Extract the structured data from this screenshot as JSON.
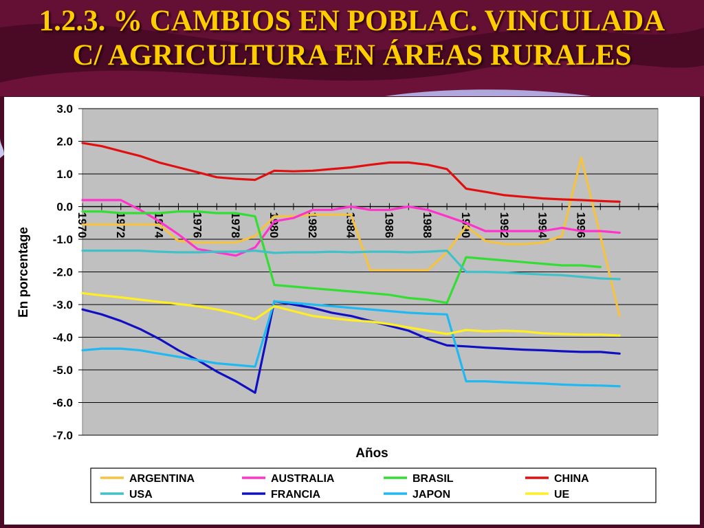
{
  "slide": {
    "title_line1": "1.2.3.  % CAMBIOS EN POBLAC. VINCULADA",
    "title_line2": "C/ AGRICULTURA EN ÁREAS RURALES"
  },
  "colors": {
    "background": "#4a0a26",
    "title": "#ffcc00",
    "plot_area": "#c0c0c0"
  },
  "chart_data": {
    "type": "line",
    "title": "",
    "xlabel": "Años",
    "ylabel": "En porcentage",
    "ylim": [
      -7.0,
      3.0
    ],
    "yticks": [
      "3.0",
      "2.0",
      "1.0",
      "0.0",
      "-1.0",
      "-2.0",
      "-3.0",
      "-4.0",
      "-5.0",
      "-6.0",
      "-7.0"
    ],
    "xlim": [
      1970,
      2000
    ],
    "xticks": [
      "1970",
      "1972",
      "1974",
      "1976",
      "1978",
      "1980",
      "1982",
      "1984",
      "1986",
      "1988",
      "1990",
      "1992",
      "1994",
      "1996"
    ],
    "grid": true,
    "legend_position": "bottom",
    "series": [
      {
        "name": "ARGENTINA",
        "color": "#f5c242",
        "x": [
          1970,
          1971,
          1972,
          1973,
          1974,
          1975,
          1976,
          1977,
          1978,
          1979,
          1980,
          1981,
          1982,
          1983,
          1984,
          1985,
          1986,
          1987,
          1988,
          1989,
          1990,
          1991,
          1992,
          1993,
          1994,
          1995,
          1996,
          1997,
          1998
        ],
        "y": [
          -0.55,
          -0.55,
          -0.55,
          -0.55,
          -0.55,
          -1.05,
          -1.1,
          -1.1,
          -1.1,
          -0.9,
          -0.3,
          -0.3,
          -0.25,
          -0.25,
          -0.25,
          -1.95,
          -1.95,
          -1.95,
          -1.95,
          -1.4,
          -0.6,
          -1.05,
          -1.15,
          -1.15,
          -1.1,
          -0.9,
          1.5,
          -0.9,
          -3.35
        ]
      },
      {
        "name": "AUSTRALIA",
        "color": "#ff33cc",
        "x": [
          1970,
          1971,
          1972,
          1973,
          1974,
          1975,
          1976,
          1977,
          1978,
          1979,
          1980,
          1981,
          1982,
          1983,
          1984,
          1985,
          1986,
          1987,
          1988,
          1989,
          1990,
          1991,
          1992,
          1993,
          1994,
          1995,
          1996,
          1997,
          1998
        ],
        "y": [
          0.2,
          0.2,
          0.2,
          -0.1,
          -0.45,
          -0.85,
          -1.3,
          -1.4,
          -1.5,
          -1.25,
          -0.45,
          -0.35,
          -0.1,
          -0.1,
          0.0,
          -0.1,
          -0.1,
          0.0,
          -0.1,
          -0.3,
          -0.5,
          -0.75,
          -0.75,
          -0.75,
          -0.75,
          -0.65,
          -0.75,
          -0.75,
          -0.8
        ]
      },
      {
        "name": "BRASIL",
        "color": "#33dd33",
        "x": [
          1970,
          1971,
          1972,
          1973,
          1974,
          1975,
          1976,
          1977,
          1978,
          1979,
          1980,
          1981,
          1982,
          1983,
          1984,
          1985,
          1986,
          1987,
          1988,
          1989,
          1990,
          1991,
          1992,
          1993,
          1994,
          1995,
          1996,
          1997
        ],
        "y": [
          -0.15,
          -0.15,
          -0.2,
          -0.2,
          -0.2,
          -0.15,
          -0.15,
          -0.2,
          -0.2,
          -0.3,
          -2.4,
          -2.45,
          -2.5,
          -2.55,
          -2.6,
          -2.65,
          -2.7,
          -2.8,
          -2.85,
          -2.95,
          -1.55,
          -1.6,
          -1.65,
          -1.7,
          -1.75,
          -1.8,
          -1.8,
          -1.85
        ]
      },
      {
        "name": "CHINA",
        "color": "#e01010",
        "x": [
          1970,
          1971,
          1972,
          1973,
          1974,
          1975,
          1976,
          1977,
          1978,
          1979,
          1980,
          1981,
          1982,
          1983,
          1984,
          1985,
          1986,
          1987,
          1988,
          1989,
          1990,
          1991,
          1992,
          1993,
          1994,
          1995,
          1996,
          1997,
          1998
        ],
        "y": [
          1.95,
          1.85,
          1.7,
          1.55,
          1.35,
          1.2,
          1.05,
          0.9,
          0.85,
          0.82,
          1.1,
          1.08,
          1.1,
          1.15,
          1.2,
          1.28,
          1.35,
          1.35,
          1.28,
          1.15,
          0.55,
          0.45,
          0.35,
          0.3,
          0.25,
          0.22,
          0.2,
          0.17,
          0.15
        ]
      },
      {
        "name": "USA",
        "color": "#40c0c8",
        "x": [
          1970,
          1971,
          1972,
          1973,
          1974,
          1975,
          1976,
          1977,
          1978,
          1979,
          1980,
          1981,
          1982,
          1983,
          1984,
          1985,
          1986,
          1987,
          1988,
          1989,
          1990,
          1991,
          1992,
          1993,
          1994,
          1995,
          1996,
          1997,
          1998
        ],
        "y": [
          -1.35,
          -1.35,
          -1.35,
          -1.35,
          -1.38,
          -1.4,
          -1.4,
          -1.38,
          -1.38,
          -1.35,
          -1.42,
          -1.4,
          -1.4,
          -1.38,
          -1.4,
          -1.38,
          -1.38,
          -1.4,
          -1.38,
          -1.35,
          -2.0,
          -2.0,
          -2.02,
          -2.05,
          -2.08,
          -2.1,
          -2.15,
          -2.2,
          -2.22
        ]
      },
      {
        "name": "FRANCIA",
        "color": "#1010c0",
        "x": [
          1970,
          1971,
          1972,
          1973,
          1974,
          1975,
          1976,
          1977,
          1978,
          1979,
          1980,
          1981,
          1982,
          1983,
          1984,
          1985,
          1986,
          1987,
          1988,
          1989,
          1990,
          1991,
          1992,
          1993,
          1994,
          1995,
          1996,
          1997,
          1998
        ],
        "y": [
          -3.15,
          -3.3,
          -3.5,
          -3.75,
          -4.05,
          -4.4,
          -4.7,
          -5.05,
          -5.35,
          -5.7,
          -2.9,
          -3.0,
          -3.1,
          -3.25,
          -3.35,
          -3.5,
          -3.65,
          -3.8,
          -4.05,
          -4.25,
          -4.28,
          -4.32,
          -4.35,
          -4.38,
          -4.4,
          -4.43,
          -4.45,
          -4.45,
          -4.5
        ]
      },
      {
        "name": "JAPON",
        "color": "#20b8f0",
        "x": [
          1970,
          1971,
          1972,
          1973,
          1974,
          1975,
          1976,
          1977,
          1978,
          1979,
          1980,
          1981,
          1982,
          1983,
          1984,
          1985,
          1986,
          1987,
          1988,
          1989,
          1990,
          1991,
          1992,
          1993,
          1994,
          1995,
          1996,
          1997,
          1998
        ],
        "y": [
          -4.4,
          -4.35,
          -4.35,
          -4.4,
          -4.5,
          -4.6,
          -4.7,
          -4.8,
          -4.85,
          -4.9,
          -2.9,
          -2.95,
          -3.0,
          -3.05,
          -3.1,
          -3.15,
          -3.2,
          -3.25,
          -3.28,
          -3.3,
          -5.35,
          -5.35,
          -5.38,
          -5.4,
          -5.42,
          -5.45,
          -5.47,
          -5.48,
          -5.5
        ]
      },
      {
        "name": "UE",
        "color": "#ffee22",
        "x": [
          1970,
          1971,
          1972,
          1973,
          1974,
          1975,
          1976,
          1977,
          1978,
          1979,
          1980,
          1981,
          1982,
          1983,
          1984,
          1985,
          1986,
          1987,
          1988,
          1989,
          1990,
          1991,
          1992,
          1993,
          1994,
          1995,
          1996,
          1997,
          1998
        ],
        "y": [
          -2.65,
          -2.72,
          -2.78,
          -2.85,
          -2.92,
          -2.98,
          -3.05,
          -3.15,
          -3.28,
          -3.45,
          -3.05,
          -3.2,
          -3.35,
          -3.42,
          -3.48,
          -3.52,
          -3.6,
          -3.7,
          -3.8,
          -3.9,
          -3.78,
          -3.82,
          -3.8,
          -3.82,
          -3.88,
          -3.9,
          -3.92,
          -3.92,
          -3.95
        ]
      }
    ]
  }
}
